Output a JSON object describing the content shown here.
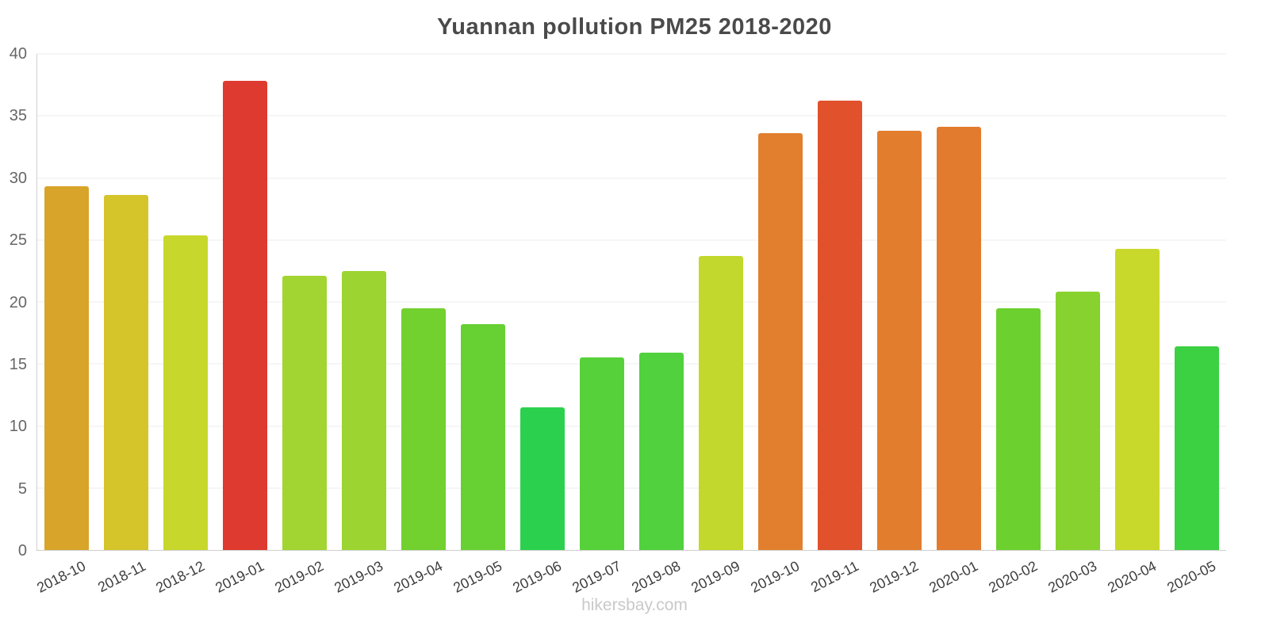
{
  "title": "Yuannan pollution PM25 2018-2020",
  "footer": "hikersbay.com",
  "chart_data": {
    "type": "bar",
    "title": "Yuannan pollution PM25 2018-2020",
    "xlabel": "",
    "ylabel": "",
    "ylim": [
      0,
      40
    ],
    "ytick_step": 5,
    "grid": true,
    "legend": false,
    "categories": [
      "2018-10",
      "2018-11",
      "2018-12",
      "2019-01",
      "2019-02",
      "2019-03",
      "2019-04",
      "2019-05",
      "2019-06",
      "2019-07",
      "2019-08",
      "2019-09",
      "2019-10",
      "2019-11",
      "2019-12",
      "2020-01",
      "2020-02",
      "2020-03",
      "2020-04",
      "2020-05"
    ],
    "values": [
      29.3,
      28.6,
      25.4,
      37.8,
      22.1,
      22.5,
      19.5,
      18.2,
      11.5,
      15.5,
      15.9,
      23.7,
      33.6,
      36.2,
      33.8,
      34.1,
      19.5,
      20.8,
      24.3,
      16.4
    ],
    "colors": [
      "#d8a52a",
      "#d5c42a",
      "#c8d72c",
      "#df3a30",
      "#a2d531",
      "#9cd431",
      "#72d02f",
      "#67d033",
      "#2bd14e",
      "#57d13a",
      "#51d13d",
      "#c3d82c",
      "#e27f2e",
      "#e0512c",
      "#e27d2e",
      "#e27b2e",
      "#6cd02f",
      "#87d22e",
      "#c9d92c",
      "#3cd043"
    ]
  }
}
